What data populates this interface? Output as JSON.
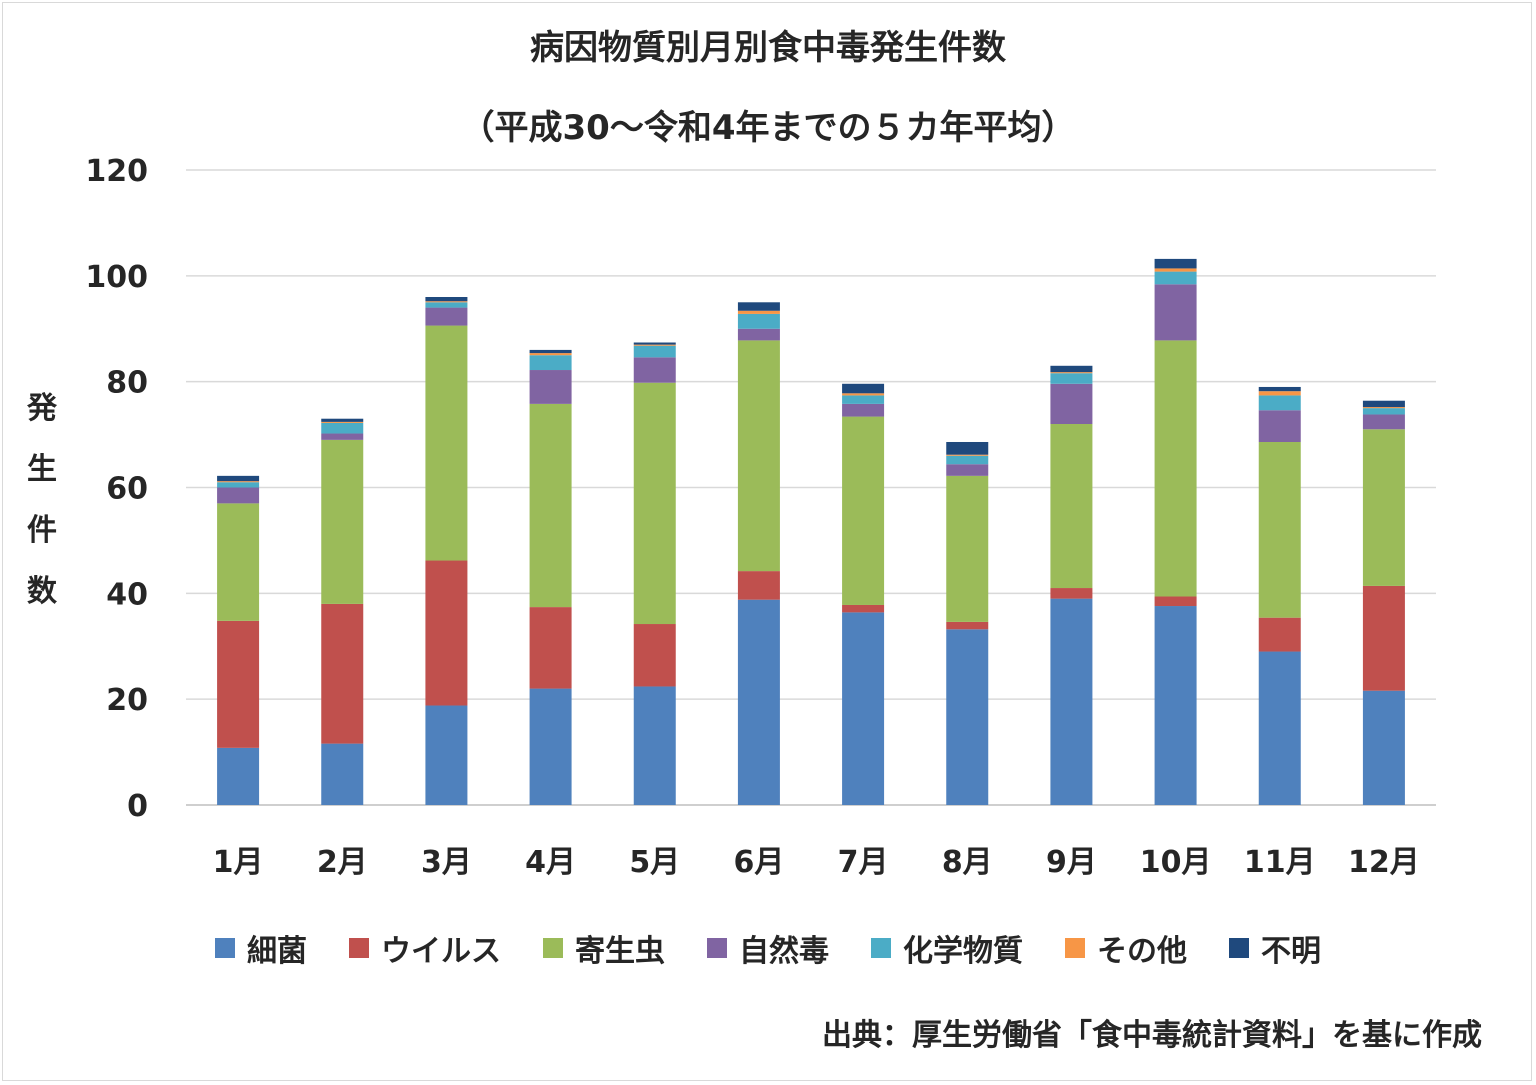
{
  "chart_data": {
    "type": "bar",
    "stacked": true,
    "title": "病因物質別月別食中毒発生件数",
    "subtitle": "（平成30～令和4年までの５カ年平均）",
    "ylabel": "発生件数",
    "xlabel": "",
    "ylim": [
      0,
      120
    ],
    "yticks": [
      0,
      20,
      40,
      60,
      80,
      100,
      120
    ],
    "grid": true,
    "legend_position": "bottom",
    "categories": [
      "1月",
      "2月",
      "3月",
      "4月",
      "5月",
      "6月",
      "7月",
      "8月",
      "9月",
      "10月",
      "11月",
      "12月"
    ],
    "series": [
      {
        "name": "細菌",
        "color": "#4f81bd",
        "values": [
          10.8,
          11.6,
          18.8,
          22.0,
          22.4,
          38.8,
          36.4,
          33.2,
          39.0,
          37.6,
          29.0,
          21.6
        ]
      },
      {
        "name": "ウイルス",
        "color": "#c0504d",
        "values": [
          24.0,
          26.4,
          27.4,
          15.4,
          11.8,
          5.4,
          1.4,
          1.4,
          2.0,
          1.8,
          6.4,
          19.8
        ]
      },
      {
        "name": "寄生虫",
        "color": "#9bbb59",
        "values": [
          22.2,
          31.0,
          44.4,
          38.4,
          45.6,
          43.6,
          35.6,
          27.6,
          31.0,
          48.4,
          33.2,
          29.6
        ]
      },
      {
        "name": "自然毒",
        "color": "#8064a2",
        "values": [
          3.0,
          1.2,
          3.4,
          6.4,
          4.8,
          2.2,
          2.4,
          2.2,
          7.6,
          10.6,
          6.0,
          2.8
        ]
      },
      {
        "name": "化学物質",
        "color": "#4bacc6",
        "values": [
          1.0,
          2.0,
          1.0,
          2.8,
          2.2,
          2.8,
          1.6,
          1.6,
          2.0,
          2.4,
          2.8,
          1.2
        ]
      },
      {
        "name": "その他",
        "color": "#f79646",
        "values": [
          0.2,
          0.2,
          0.2,
          0.4,
          0.2,
          0.6,
          0.4,
          0.2,
          0.2,
          0.6,
          0.8,
          0.2
        ]
      },
      {
        "name": "不明",
        "color": "#1f497d",
        "values": [
          1.0,
          0.6,
          0.8,
          0.6,
          0.4,
          1.6,
          1.8,
          2.4,
          1.2,
          1.8,
          0.8,
          1.2
        ]
      }
    ]
  },
  "source_note": "出典：厚生労働省「食中毒統計資料」を基に作成"
}
